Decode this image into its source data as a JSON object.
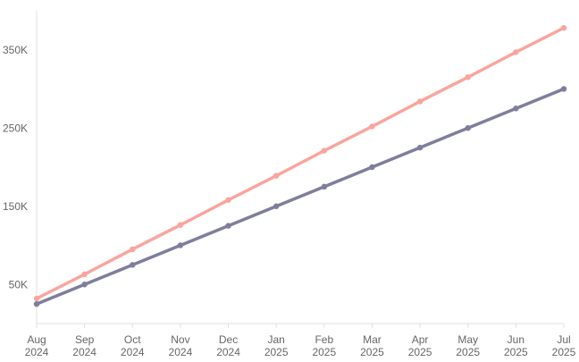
{
  "chart_data": {
    "type": "line",
    "title": "",
    "xlabel": "",
    "ylabel": "",
    "categories": [
      [
        "Aug",
        "2024"
      ],
      [
        "Sep",
        "2024"
      ],
      [
        "Oct",
        "2024"
      ],
      [
        "Nov",
        "2024"
      ],
      [
        "Dec",
        "2024"
      ],
      [
        "Jan",
        "2025"
      ],
      [
        "Feb",
        "2025"
      ],
      [
        "Mar",
        "2025"
      ],
      [
        "Apr",
        "2025"
      ],
      [
        "May",
        "2025"
      ],
      [
        "Jun",
        "2025"
      ],
      [
        "Jul",
        "2025"
      ]
    ],
    "yticks": [
      50000,
      150000,
      250000,
      350000
    ],
    "ytick_labels": [
      "50K",
      "150K",
      "250K",
      "350K"
    ],
    "ylim": [
      0,
      400000
    ],
    "grid": false,
    "legend": "none",
    "series": [
      {
        "color": "#FAA49C",
        "values": [
          32000,
          63000,
          95000,
          126000,
          158000,
          189000,
          221000,
          252000,
          284000,
          315000,
          347000,
          378000
        ]
      },
      {
        "color": "#7E7E9C",
        "values": [
          25000,
          50000,
          75000,
          100000,
          125000,
          150000,
          175000,
          200000,
          225000,
          250000,
          275000,
          300000
        ]
      }
    ]
  }
}
